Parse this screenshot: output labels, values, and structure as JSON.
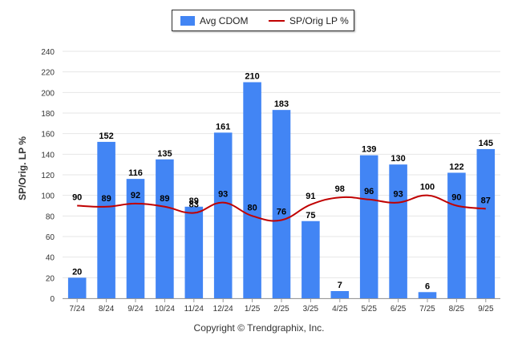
{
  "chart_data": {
    "type": "bar+line",
    "categories": [
      "7/24",
      "8/24",
      "9/24",
      "10/24",
      "11/24",
      "12/24",
      "1/25",
      "2/25",
      "3/25",
      "4/25",
      "5/25",
      "6/25",
      "7/25",
      "8/25",
      "9/25"
    ],
    "series": [
      {
        "name": "Avg CDOM",
        "type": "bar",
        "color": "#4285f4",
        "values": [
          20,
          152,
          116,
          135,
          89,
          161,
          210,
          183,
          75,
          7,
          139,
          130,
          6,
          122,
          145
        ]
      },
      {
        "name": "SP/Orig LP %",
        "type": "line",
        "color": "#c00000",
        "values": [
          90,
          89,
          92,
          89,
          83,
          93,
          80,
          76,
          91,
          98,
          96,
          93,
          100,
          90,
          87
        ]
      }
    ],
    "ylabel": "SP/Orig. LP %",
    "ylim": [
      0,
      240
    ],
    "yticks": [
      0,
      20,
      40,
      60,
      80,
      100,
      120,
      140,
      160,
      180,
      200,
      220,
      240
    ],
    "grid": true,
    "legend_position": "top-center"
  },
  "footer": {
    "copyright": "Copyright © Trendgraphix, Inc."
  }
}
